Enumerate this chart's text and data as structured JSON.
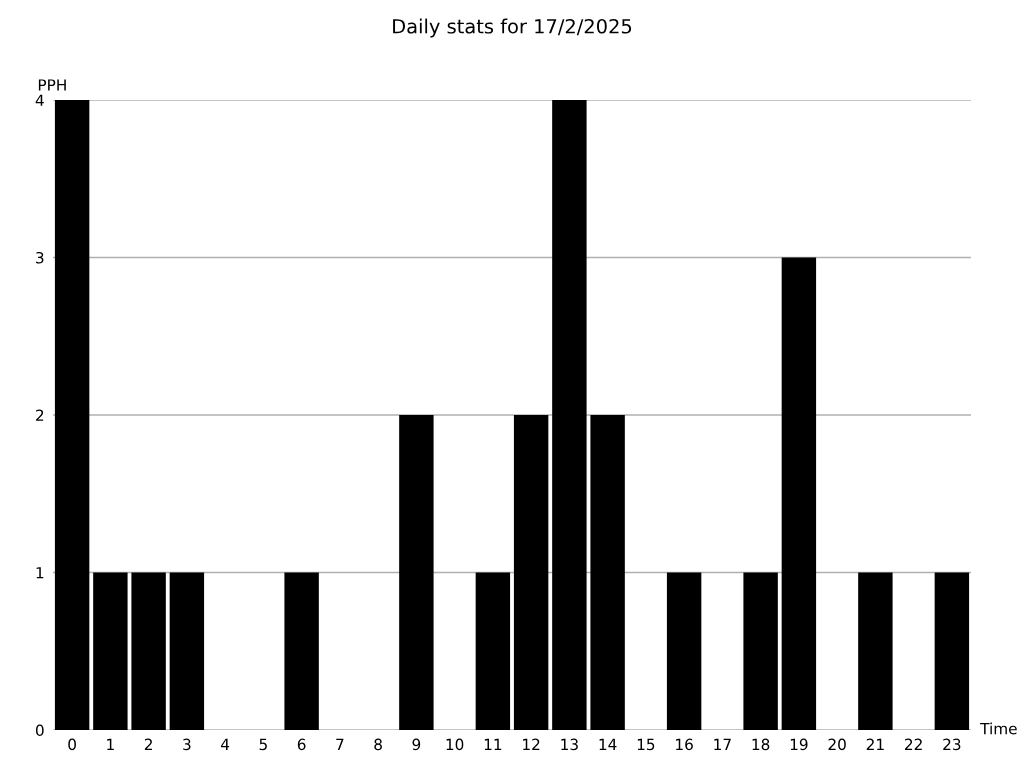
{
  "chart_data": {
    "type": "bar",
    "title": "Daily stats for 17/2/2025",
    "xlabel": "Time",
    "ylabel": "PPH",
    "categories": [
      "0",
      "1",
      "2",
      "3",
      "4",
      "5",
      "6",
      "7",
      "8",
      "9",
      "10",
      "11",
      "12",
      "13",
      "14",
      "15",
      "16",
      "17",
      "18",
      "19",
      "20",
      "21",
      "22",
      "23"
    ],
    "values": [
      4,
      1,
      1,
      1,
      0,
      0,
      1,
      0,
      0,
      2,
      0,
      1,
      2,
      4,
      2,
      0,
      1,
      0,
      1,
      3,
      0,
      1,
      0,
      1
    ],
    "color": "#000000",
    "ylim": [
      0,
      4
    ],
    "yticks": [
      0,
      1,
      2,
      3,
      4
    ],
    "grid": "y"
  }
}
